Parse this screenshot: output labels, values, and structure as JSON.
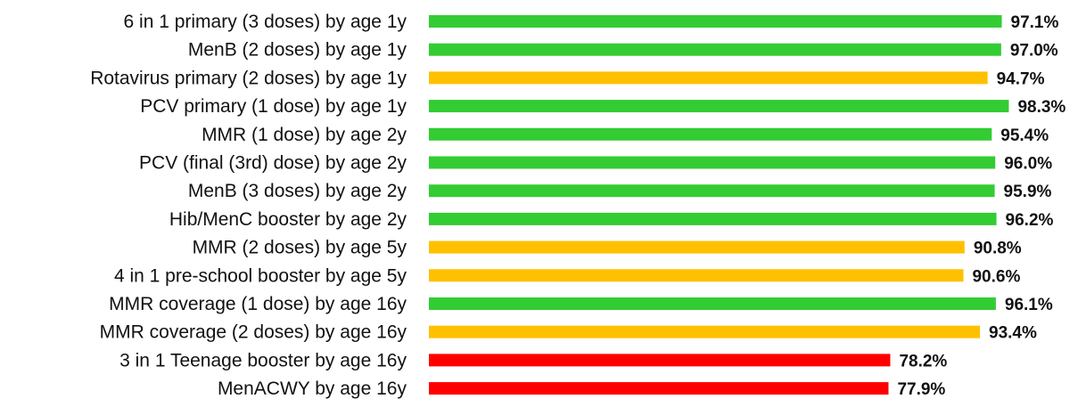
{
  "chart_data": {
    "type": "bar",
    "orientation": "horizontal",
    "title": "",
    "xlabel": "",
    "ylabel": "",
    "grid": false,
    "legend": "none",
    "categories": [
      "6 in 1 primary (3 doses) by age 1y",
      "MenB (2 doses) by age 1y",
      "Rotavirus primary (2 doses) by age 1y",
      "PCV primary (1 dose) by age 1y",
      "MMR (1 dose) by age 2y",
      "PCV (final (3rd) dose) by age 2y",
      "MenB (3 doses) by age 2y",
      "Hib/MenC booster by age 2y",
      "MMR (2 doses) by age 5y",
      "4 in 1 pre-school booster by age 5y",
      "MMR coverage (1 dose) by age 16y",
      "MMR coverage (2 doses) by age 16y",
      "3 in 1 Teenage booster by age 16y",
      "MenACWY by age 16y"
    ],
    "values": [
      97.1,
      97.0,
      94.7,
      98.3,
      95.4,
      96.0,
      95.9,
      96.2,
      90.8,
      90.6,
      96.1,
      93.4,
      78.2,
      77.9
    ],
    "value_labels": [
      "97.1%",
      "97.0%",
      "94.7%",
      "98.3%",
      "95.4%",
      "96.0%",
      "95.9%",
      "96.2%",
      "90.8%",
      "90.6%",
      "96.1%",
      "93.4%",
      "78.2%",
      "77.9%"
    ],
    "bar_colors": [
      "#33cc33",
      "#33cc33",
      "#ffc000",
      "#33cc33",
      "#33cc33",
      "#33cc33",
      "#33cc33",
      "#33cc33",
      "#ffc000",
      "#ffc000",
      "#33cc33",
      "#ffc000",
      "#ff0000",
      "#ff0000"
    ],
    "colors": {
      "green": "#33cc33",
      "amber": "#ffc000",
      "red": "#ff0000"
    }
  }
}
